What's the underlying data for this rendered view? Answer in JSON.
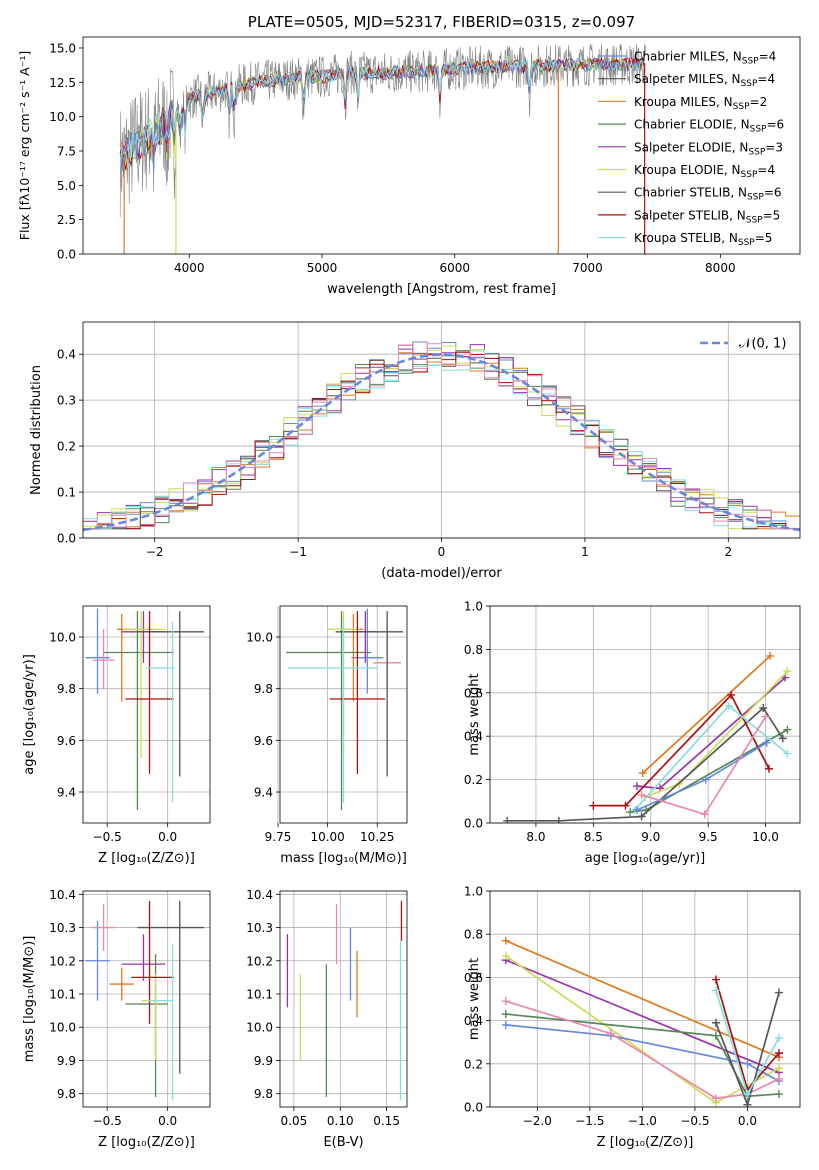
{
  "colors": {
    "blue": "#6688dd",
    "orange": "#e07a1f",
    "tan": "#c8963c",
    "darkgreen": "#558855",
    "purple": "#9933aa",
    "yellow": "#ccdd55",
    "gray": "#555555",
    "red": "#aa1111",
    "cyan": "#88dddd",
    "pink": "#e888b0",
    "grid": "#b0b0b0"
  },
  "chart_data": [
    {
      "type": "line",
      "title": "PLATE=0505, MJD=52317, FIBERID=0315, z=0.097",
      "xlabel": "wavelength [Angstrom, rest frame]",
      "ylabel": "Flux [fλ10⁻¹⁷ erg cm⁻² s⁻¹ A⁻¹]",
      "xlim": [
        3200,
        8600
      ],
      "ylim": [
        0,
        15.8
      ],
      "xticks": [
        "4000",
        "5000",
        "6000",
        "7000",
        "8000"
      ],
      "yticks": [
        "0.0",
        "2.5",
        "5.0",
        "7.5",
        "10.0",
        "12.5",
        "15.0"
      ],
      "grid": false,
      "legend_position": "right",
      "legend": [
        {
          "name": "Chabrier MILES, N",
          "sub": "SSP",
          "tail": "=4",
          "color": "blue"
        },
        {
          "name": "Salpeter MILES, N",
          "sub": "SSP",
          "tail": "=4",
          "color": "gray"
        },
        {
          "name": "Kroupa MILES, N",
          "sub": "SSP",
          "tail": "=2",
          "color": "tan"
        },
        {
          "name": "Chabrier ELODIE, N",
          "sub": "SSP",
          "tail": "=6",
          "color": "darkgreen"
        },
        {
          "name": "Salpeter ELODIE, N",
          "sub": "SSP",
          "tail": "=3",
          "color": "purple"
        },
        {
          "name": "Kroupa ELODIE, N",
          "sub": "SSP",
          "tail": "=4",
          "color": "yellow"
        },
        {
          "name": "Chabrier STELIB, N",
          "sub": "SSP",
          "tail": "=6",
          "color": "gray"
        },
        {
          "name": "Salpeter STELIB, N",
          "sub": "SSP",
          "tail": "=5",
          "color": "red"
        },
        {
          "name": "Kroupa STELIB, N",
          "sub": "SSP",
          "tail": "=5",
          "color": "cyan"
        }
      ],
      "continuum": {
        "x": [
          3500,
          3550,
          3600,
          3700,
          3800,
          3900,
          4000,
          4100,
          4200,
          4300,
          4500,
          4800,
          5000,
          5200,
          5500,
          5800,
          6000,
          6300,
          6600,
          7000,
          7300,
          7450
        ],
        "y": [
          7.0,
          7.4,
          8.0,
          8.6,
          9.4,
          10.4,
          11.3,
          11.6,
          11.8,
          12.1,
          12.5,
          12.8,
          12.9,
          13.2,
          13.2,
          13.3,
          13.5,
          13.6,
          13.7,
          13.8,
          13.8,
          13.9
        ]
      },
      "drops": [
        {
          "x": 3510,
          "color": "orange"
        },
        {
          "x": 3900,
          "color": "yellow"
        },
        {
          "x": 6780,
          "color": "orange"
        },
        {
          "x": 7430,
          "color": "red"
        }
      ]
    },
    {
      "type": "bar",
      "xlabel": "(data-model)/error",
      "ylabel": "Normed distribution",
      "xlim": [
        -2.5,
        2.5
      ],
      "ylim": [
        0,
        0.47
      ],
      "xticks": [
        "−2",
        "−1",
        "0",
        "1",
        "2"
      ],
      "yticks": [
        "0.0",
        "0.1",
        "0.2",
        "0.3",
        "0.4"
      ],
      "grid": true,
      "legend": "𝒩(0, 1)",
      "legend_position": "top-right",
      "bin_width": 0.1,
      "series_colors": [
        "blue",
        "orange",
        "darkgreen",
        "purple",
        "yellow",
        "gray",
        "red",
        "cyan",
        "pink"
      ]
    },
    {
      "type": "scatter",
      "xlabel": "Z [log₁₀(Z/Z⊙)]",
      "ylabel": "age  [log₁₀(age/yr)]",
      "xlim": [
        -0.7,
        0.35
      ],
      "ylim": [
        9.28,
        10.12
      ],
      "xticks": [
        "−0.5",
        "0.0"
      ],
      "yticks": [
        "9.4",
        "9.6",
        "9.8",
        "10.0"
      ],
      "grid": true,
      "points": [
        {
          "x": -0.58,
          "y": 9.92,
          "xerr": [
            0.1,
            0.1
          ],
          "yerr": [
            0.14,
            0.19
          ],
          "color": "blue"
        },
        {
          "x": -0.53,
          "y": 9.91,
          "xerr": [
            0.09,
            0.09
          ],
          "yerr": [
            0.11,
            0.12
          ],
          "color": "pink"
        },
        {
          "x": -0.38,
          "y": 10.03,
          "xerr": [
            0.04,
            0.27
          ],
          "yerr": [
            0.28,
            0.06
          ],
          "color": "orange"
        },
        {
          "x": -0.25,
          "y": 9.94,
          "xerr": [
            0.28,
            0.3
          ],
          "yerr": [
            0.61,
            0.16
          ],
          "color": "darkgreen"
        },
        {
          "x": -0.2,
          "y": 10.02,
          "xerr": [
            0.18,
            0.18
          ],
          "yerr": [
            0.12,
            0.08
          ],
          "color": "purple"
        },
        {
          "x": -0.22,
          "y": 10.03,
          "xerr": [
            0.15,
            0.2
          ],
          "yerr": [
            0.5,
            0.07
          ],
          "color": "yellow"
        },
        {
          "x": 0.1,
          "y": 10.02,
          "xerr": [
            0.35,
            0.2
          ],
          "yerr": [
            0.56,
            0.08
          ],
          "color": "gray"
        },
        {
          "x": -0.15,
          "y": 9.76,
          "xerr": [
            0.2,
            0.2
          ],
          "yerr": [
            0.29,
            0.34
          ],
          "color": "red"
        },
        {
          "x": 0.04,
          "y": 9.88,
          "xerr": [
            0.22,
            0.02
          ],
          "yerr": [
            0.52,
            0.18
          ],
          "color": "cyan"
        }
      ]
    },
    {
      "type": "scatter",
      "xlabel": "mass [log₁₀(M/M⊙)]",
      "ylabel": "",
      "xlim": [
        9.76,
        10.4
      ],
      "ylim": [
        9.28,
        10.12
      ],
      "xticks": [
        "9.75",
        "10.00",
        "10.25"
      ],
      "yticks": [
        "9.4",
        "9.6",
        "9.8",
        "10.0"
      ],
      "grid": true,
      "points": [
        {
          "x": 10.2,
          "y": 9.92,
          "xerr": [
            0.08,
            0.08
          ],
          "yerr": [
            0.14,
            0.19
          ],
          "color": "blue"
        },
        {
          "x": 10.3,
          "y": 9.9,
          "xerr": [
            0.07,
            0.07
          ],
          "yerr": [
            0.11,
            0.12
          ],
          "color": "pink"
        },
        {
          "x": 10.13,
          "y": 10.03,
          "xerr": [
            0.05,
            0.05
          ],
          "yerr": [
            0.28,
            0.06
          ],
          "color": "orange"
        },
        {
          "x": 10.07,
          "y": 9.94,
          "xerr": [
            0.28,
            0.15
          ],
          "yerr": [
            0.61,
            0.16
          ],
          "color": "darkgreen"
        },
        {
          "x": 10.19,
          "y": 10.02,
          "xerr": [
            0.05,
            0.05
          ],
          "yerr": [
            0.12,
            0.08
          ],
          "color": "purple"
        },
        {
          "x": 10.08,
          "y": 10.03,
          "xerr": [
            0.08,
            0.08
          ],
          "yerr": [
            0.5,
            0.07
          ],
          "color": "yellow"
        },
        {
          "x": 10.3,
          "y": 10.02,
          "xerr": [
            0.26,
            0.08
          ],
          "yerr": [
            0.56,
            0.08
          ],
          "color": "gray"
        },
        {
          "x": 10.15,
          "y": 9.76,
          "xerr": [
            0.14,
            0.14
          ],
          "yerr": [
            0.29,
            0.34
          ],
          "color": "red"
        },
        {
          "x": 10.08,
          "y": 9.88,
          "xerr": [
            0.28,
            0.17
          ],
          "yerr": [
            0.52,
            0.18
          ],
          "color": "cyan"
        }
      ]
    },
    {
      "type": "line",
      "xlabel": "age  [log₁₀(age/yr)]",
      "ylabel": "mass weight",
      "xlim": [
        7.6,
        10.3
      ],
      "ylim": [
        0,
        1.0
      ],
      "xticks": [
        "8.0",
        "8.5",
        "9.0",
        "9.5",
        "10.0"
      ],
      "yticks": [
        "0.0",
        "0.2",
        "0.4",
        "0.6",
        "0.8",
        "1.0"
      ],
      "grid": true,
      "series": [
        {
          "color": "orange",
          "x": [
            8.93,
            10.04
          ],
          "y": [
            0.23,
            0.77
          ]
        },
        {
          "color": "darkgreen",
          "x": [
            8.82,
            8.96,
            10.19
          ],
          "y": [
            0.05,
            0.06,
            0.43
          ]
        },
        {
          "color": "purple",
          "x": [
            8.88,
            9.08,
            10.17
          ],
          "y": [
            0.17,
            0.16,
            0.67
          ]
        },
        {
          "color": "yellow",
          "x": [
            8.95,
            9.25,
            10.19
          ],
          "y": [
            0.12,
            0.18,
            0.7
          ]
        },
        {
          "color": "gray",
          "x": [
            7.75,
            8.2,
            8.92,
            9.98,
            10.15
          ],
          "y": [
            0.01,
            0.01,
            0.03,
            0.53,
            0.39
          ]
        },
        {
          "color": "red",
          "x": [
            8.5,
            8.78,
            9.7,
            10.03
          ],
          "y": [
            0.08,
            0.08,
            0.59,
            0.25
          ]
        },
        {
          "color": "cyan",
          "x": [
            8.86,
            9.68,
            10.19
          ],
          "y": [
            0.06,
            0.54,
            0.32
          ]
        },
        {
          "color": "blue",
          "x": [
            8.88,
            9.48,
            10.01
          ],
          "y": [
            0.06,
            0.2,
            0.37
          ]
        },
        {
          "color": "pink",
          "x": [
            8.92,
            9.47,
            10.0
          ],
          "y": [
            0.13,
            0.04,
            0.49
          ]
        }
      ]
    },
    {
      "type": "scatter",
      "xlabel": "Z [log₁₀(Z/Z⊙)]",
      "ylabel": "mass [log₁₀(M/M⊙)]",
      "xlim": [
        -0.7,
        0.35
      ],
      "ylim": [
        9.76,
        10.41
      ],
      "xticks": [
        "−0.5",
        "0.0"
      ],
      "yticks": [
        "9.8",
        "9.9",
        "10.0",
        "10.1",
        "10.2",
        "10.3",
        "10.4"
      ],
      "grid": true,
      "points": [
        {
          "x": -0.58,
          "y": 10.2,
          "xerr": [
            0.1,
            0.1
          ],
          "yerr": [
            0.12,
            0.12
          ],
          "color": "blue"
        },
        {
          "x": -0.53,
          "y": 10.3,
          "xerr": [
            0.09,
            0.09
          ],
          "yerr": [
            0.07,
            0.07
          ],
          "color": "pink"
        },
        {
          "x": -0.38,
          "y": 10.13,
          "xerr": [
            0.1,
            0.1
          ],
          "yerr": [
            0.05,
            0.05
          ],
          "color": "orange"
        },
        {
          "x": -0.1,
          "y": 10.07,
          "xerr": [
            0.25,
            0.1
          ],
          "yerr": [
            0.28,
            0.15
          ],
          "color": "darkgreen"
        },
        {
          "x": -0.2,
          "y": 10.19,
          "xerr": [
            0.18,
            0.18
          ],
          "yerr": [
            0.05,
            0.09
          ],
          "color": "purple"
        },
        {
          "x": -0.1,
          "y": 10.08,
          "xerr": [
            0.12,
            0.08
          ],
          "yerr": [
            0.18,
            0.08
          ],
          "color": "yellow"
        },
        {
          "x": 0.1,
          "y": 10.3,
          "xerr": [
            0.35,
            0.2
          ],
          "yerr": [
            0.44,
            0.08
          ],
          "color": "gray"
        },
        {
          "x": -0.15,
          "y": 10.15,
          "xerr": [
            0.15,
            0.2
          ],
          "yerr": [
            0.14,
            0.23
          ],
          "color": "red"
        },
        {
          "x": 0.04,
          "y": 10.08,
          "xerr": [
            0.2,
            0.0
          ],
          "yerr": [
            0.3,
            0.17
          ],
          "color": "cyan"
        }
      ]
    },
    {
      "type": "scatter",
      "xlabel": "E(B-V)",
      "ylabel": "",
      "xlim": [
        0.035,
        0.172
      ],
      "ylim": [
        9.76,
        10.41
      ],
      "xticks": [
        "0.05",
        "0.10",
        "0.15"
      ],
      "yticks": [
        "9.8",
        "9.9",
        "10.0",
        "10.1",
        "10.2",
        "10.3",
        "10.4"
      ],
      "grid": true,
      "points": [
        {
          "x": 0.043,
          "y": 10.17,
          "xerr": [
            0,
            0
          ],
          "yerr": [
            0.11,
            0.11
          ],
          "color": "purple"
        },
        {
          "x": 0.057,
          "y": 10.03,
          "xerr": [
            0,
            0
          ],
          "yerr": [
            0.13,
            0.13
          ],
          "color": "yellow"
        },
        {
          "x": 0.085,
          "y": 9.99,
          "xerr": [
            0,
            0
          ],
          "yerr": [
            0.2,
            0.2
          ],
          "color": "darkgreen"
        },
        {
          "x": 0.096,
          "y": 10.28,
          "xerr": [
            0,
            0
          ],
          "yerr": [
            0.09,
            0.09
          ],
          "color": "pink"
        },
        {
          "x": 0.111,
          "y": 10.19,
          "xerr": [
            0,
            0
          ],
          "yerr": [
            0.11,
            0.11
          ],
          "color": "blue"
        },
        {
          "x": 0.118,
          "y": 10.13,
          "xerr": [
            0,
            0
          ],
          "yerr": [
            0.1,
            0.1
          ],
          "color": "orange"
        },
        {
          "x": 0.165,
          "y": 10.02,
          "xerr": [
            0,
            0
          ],
          "yerr": [
            0.24,
            0.24
          ],
          "color": "cyan"
        },
        {
          "x": 0.166,
          "y": 10.32,
          "xerr": [
            0,
            0
          ],
          "yerr": [
            0.06,
            0.06
          ],
          "color": "red"
        }
      ]
    },
    {
      "type": "line",
      "xlabel": "Z [log₁₀(Z/Z⊙)]",
      "ylabel": "mass weight",
      "xlim": [
        -2.45,
        0.5
      ],
      "ylim": [
        0,
        1.0
      ],
      "xticks": [
        "−2.0",
        "−1.5",
        "−1.0",
        "−0.5",
        "0.0"
      ],
      "yticks": [
        "0.0",
        "0.2",
        "0.4",
        "0.6",
        "0.8",
        "1.0"
      ],
      "grid": true,
      "series": [
        {
          "color": "orange",
          "x": [
            -2.3,
            0.3
          ],
          "y": [
            0.77,
            0.23
          ]
        },
        {
          "color": "purple",
          "x": [
            -2.3,
            0.3
          ],
          "y": [
            0.68,
            0.16
          ]
        },
        {
          "color": "yellow",
          "x": [
            -2.3,
            -0.3,
            0.3
          ],
          "y": [
            0.7,
            0.02,
            0.18
          ]
        },
        {
          "color": "darkgreen",
          "x": [
            -2.3,
            -0.3,
            0.0,
            0.3
          ],
          "y": [
            0.43,
            0.33,
            0.05,
            0.06
          ]
        },
        {
          "color": "blue",
          "x": [
            -2.3,
            -1.3,
            0.0,
            0.3
          ],
          "y": [
            0.38,
            0.33,
            0.2,
            0.12
          ]
        },
        {
          "color": "pink",
          "x": [
            -2.3,
            -1.3,
            -0.3,
            0.0,
            0.3
          ],
          "y": [
            0.49,
            0.34,
            0.04,
            0.06,
            0.13
          ]
        },
        {
          "color": "gray",
          "x": [
            -0.3,
            0.0,
            0.3
          ],
          "y": [
            0.39,
            0.01,
            0.53
          ]
        },
        {
          "color": "red",
          "x": [
            -0.3,
            0.0,
            0.3
          ],
          "y": [
            0.59,
            0.08,
            0.25
          ]
        },
        {
          "color": "cyan",
          "x": [
            -0.3,
            0.0,
            0.3
          ],
          "y": [
            0.54,
            0.06,
            0.32
          ]
        }
      ]
    }
  ]
}
